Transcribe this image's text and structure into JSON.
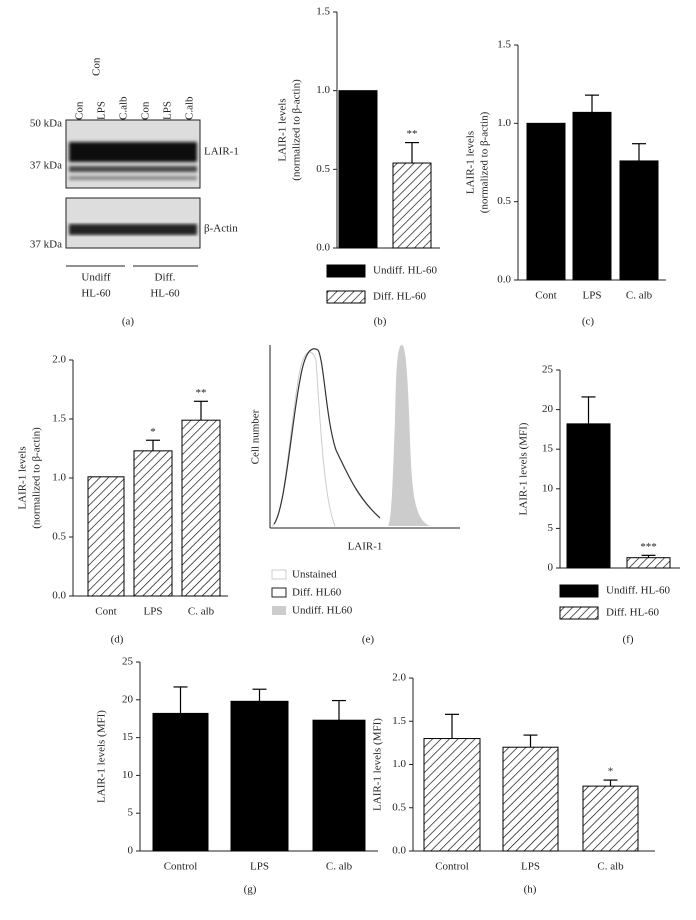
{
  "blot": {
    "lanes": [
      "Con",
      "LPS",
      "C.alb",
      "Con",
      "LPS",
      "C.alb"
    ],
    "markers": [
      "50 kDa",
      "37 kDa",
      "37 kDa"
    ],
    "bands": [
      "LAIR-1",
      "β-Actin"
    ],
    "groups": [
      [
        "Undiff",
        "HL-60"
      ],
      [
        "Diff.",
        "HL-60"
      ]
    ],
    "label": "(a)"
  },
  "flow": {
    "ylabel": "Cell number",
    "xlabel": "LAIR-1",
    "legend": [
      "Unstained",
      "Diff. HL60",
      "Undiff. HL60"
    ],
    "label": "(e)"
  },
  "chart_data": [
    {
      "type": "bar",
      "label": "(b)",
      "ylabel": [
        "LAIR-1 levels",
        "(normalized to β-actin)"
      ],
      "legend": "bottom",
      "ylim": [
        0,
        1.5
      ],
      "yticks": [
        {
          "value": 0,
          "label": "0.0"
        },
        0.5,
        {
          "value": 1,
          "label": "1.0"
        },
        1.5
      ],
      "series": [
        {
          "name": "Undiff. HL-60",
          "color": "#000000",
          "hatch": false,
          "values": [
            1.0
          ],
          "errors": [
            null
          ],
          "annotations": [
            null
          ]
        },
        {
          "name": "Diff. HL-60",
          "color": "#000000",
          "hatch": true,
          "values": [
            0.54
          ],
          "errors": [
            0.13
          ],
          "annotations": [
            "**"
          ]
        }
      ]
    },
    {
      "type": "bar",
      "label": "(c)",
      "ylabel": [
        "LAIR-1 levels",
        "(normalized to β-actin)"
      ],
      "categories": [
        "Cont",
        "LPS",
        "C. alb"
      ],
      "ylim": [
        0,
        1.5
      ],
      "yticks": [
        {
          "value": 0,
          "label": "0.0"
        },
        0.5,
        {
          "value": 1,
          "label": "1.0"
        },
        1.5
      ],
      "series": [
        {
          "color": "#000000",
          "hatch": false,
          "values": [
            1.0,
            1.07,
            0.76
          ],
          "errors": [
            null,
            0.11,
            0.11
          ],
          "annotations": [
            null,
            null,
            null
          ]
        }
      ]
    },
    {
      "type": "bar",
      "label": "(d)",
      "ylabel": [
        "LAIR-1 levels",
        "(normalized to β-actin)"
      ],
      "categories": [
        "Cont",
        "LPS",
        "C. alb"
      ],
      "ylim": [
        0,
        2
      ],
      "yticks": [
        {
          "value": 0,
          "label": "0.0"
        },
        0.5,
        {
          "value": 1,
          "label": "1.0"
        },
        1.5,
        {
          "value": 2,
          "label": "2.0"
        }
      ],
      "series": [
        {
          "color": "#000000",
          "hatch": true,
          "values": [
            1.01,
            1.23,
            1.49
          ],
          "errors": [
            null,
            0.09,
            0.16
          ],
          "annotations": [
            null,
            "*",
            "**"
          ]
        }
      ]
    },
    {
      "type": "bar",
      "label": "(f)",
      "ylabel": [
        "LAIR-1 levels (MFI)"
      ],
      "legend": "bottom",
      "ylim": [
        0,
        25
      ],
      "yticks": [
        0,
        5,
        10,
        15,
        20,
        25
      ],
      "series": [
        {
          "name": "Undiff. HL-60",
          "color": "#000000",
          "hatch": false,
          "values": [
            18.2
          ],
          "errors": [
            3.4
          ],
          "annotations": [
            null
          ]
        },
        {
          "name": "Diff. HL-60",
          "color": "#000000",
          "hatch": true,
          "values": [
            1.3
          ],
          "errors": [
            0.3
          ],
          "annotations": [
            "***"
          ]
        }
      ]
    },
    {
      "type": "bar",
      "label": "(g)",
      "ylabel": [
        "LAIR-1 levels (MFI)"
      ],
      "categories": [
        "Control",
        "LPS",
        "C. alb"
      ],
      "ylim": [
        0,
        25
      ],
      "yticks": [
        0,
        5,
        10,
        15,
        20,
        25
      ],
      "series": [
        {
          "color": "#000000",
          "hatch": false,
          "values": [
            18.2,
            19.8,
            17.3
          ],
          "errors": [
            3.5,
            1.6,
            2.6
          ],
          "annotations": [
            null,
            null,
            null
          ]
        }
      ]
    },
    {
      "type": "bar",
      "label": "(h)",
      "ylabel": [
        "LAIR-1 levels (MFI)"
      ],
      "categories": [
        "Control",
        "LPS",
        "C. alb"
      ],
      "ylim": [
        0,
        2
      ],
      "yticks": [
        {
          "value": 0,
          "label": "0.0"
        },
        0.5,
        {
          "value": 1,
          "label": "1.0"
        },
        1.5,
        {
          "value": 2,
          "label": "2.0"
        }
      ],
      "series": [
        {
          "color": "#000000",
          "hatch": true,
          "values": [
            1.3,
            1.2,
            0.75
          ],
          "errors": [
            0.28,
            0.14,
            0.07
          ],
          "annotations": [
            null,
            null,
            "*"
          ]
        }
      ]
    }
  ]
}
